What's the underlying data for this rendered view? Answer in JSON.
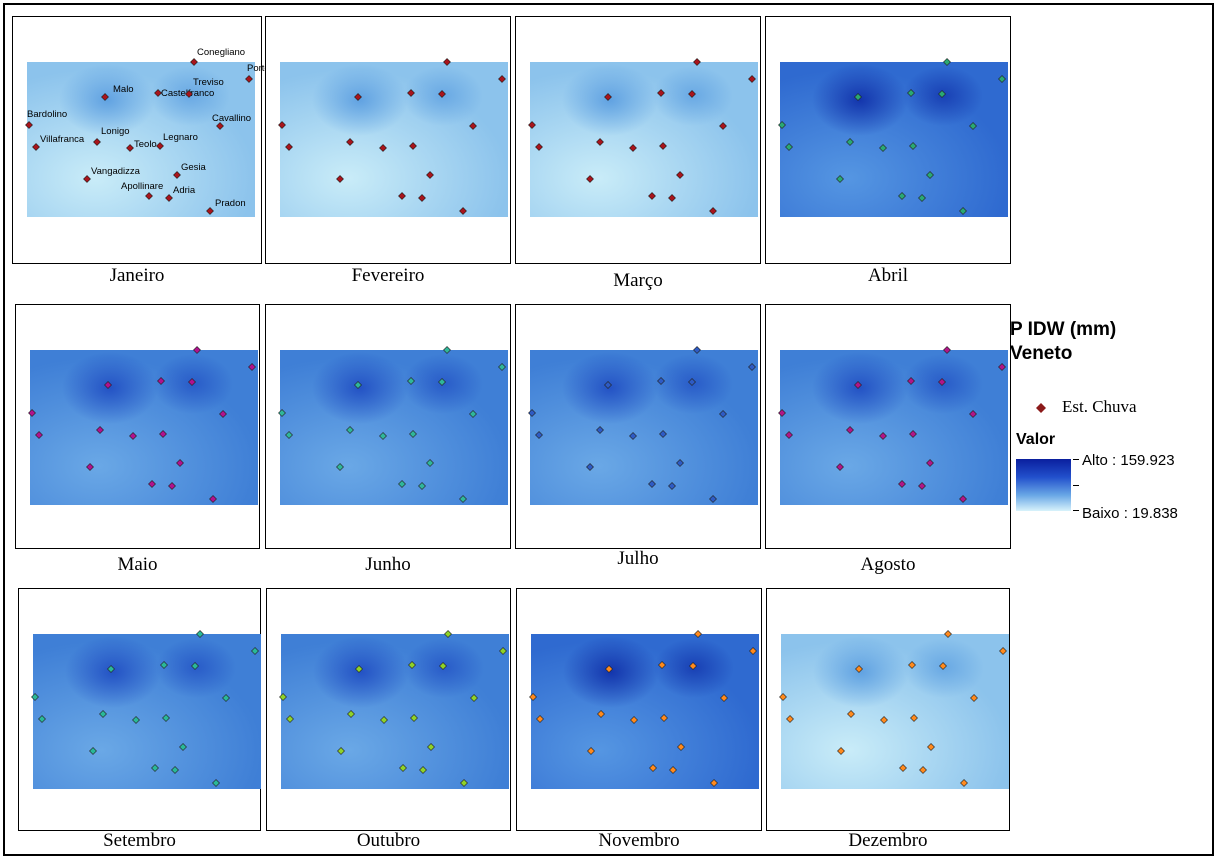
{
  "legend": {
    "title": "P IDW (mm)\nVeneto",
    "station_label": "Est. Chuva",
    "value_title": "Valor",
    "high_label": "Alto : 159.923",
    "low_label": "Baixo : 19.838",
    "ramp_colors": [
      "#0a1f9e",
      "#2250cc",
      "#6aa8e6",
      "#d8f2fb"
    ],
    "station_symbol_color": "#8b1a1a"
  },
  "stations": [
    {
      "name": "Conegliano"
    },
    {
      "name": "Portogruaro"
    },
    {
      "name": "Malo"
    },
    {
      "name": "Castelfranco"
    },
    {
      "name": "Treviso"
    },
    {
      "name": "Bardolino"
    },
    {
      "name": "Cavallino"
    },
    {
      "name": "Villafranca"
    },
    {
      "name": "Lonigo"
    },
    {
      "name": "Teolo"
    },
    {
      "name": "Legnaro"
    },
    {
      "name": "Gesia"
    },
    {
      "name": "Vangadizza"
    },
    {
      "name": "Apollinare"
    },
    {
      "name": "Adria"
    },
    {
      "name": "Pradon"
    }
  ],
  "months": [
    {
      "name": "Janeiro",
      "symbol_color": "#a8141c",
      "shade": "light",
      "labels": true
    },
    {
      "name": "Fevereiro",
      "symbol_color": "#a8141c",
      "shade": "light"
    },
    {
      "name": "Março",
      "symbol_color": "#a8141c",
      "shade": "light"
    },
    {
      "name": "Abril",
      "symbol_color": "#2aa874",
      "shade": "dark"
    },
    {
      "name": "Maio",
      "symbol_color": "#b0128e",
      "shade": "mid"
    },
    {
      "name": "Junho",
      "symbol_color": "#30b69a",
      "shade": "mid"
    },
    {
      "name": "Julho",
      "symbol_color": "#2e5bc4",
      "shade": "mid"
    },
    {
      "name": "Agosto",
      "symbol_color": "#b01688",
      "shade": "mid"
    },
    {
      "name": "Setembro",
      "symbol_color": "#2ab898",
      "shade": "mid"
    },
    {
      "name": "Outubro",
      "symbol_color": "#8fd22a",
      "shade": "mid"
    },
    {
      "name": "Novembro",
      "symbol_color": "#ff8a1e",
      "shade": "dark"
    },
    {
      "name": "Dezembro",
      "symbol_color": "#ff8a1e",
      "shade": "light"
    }
  ]
}
